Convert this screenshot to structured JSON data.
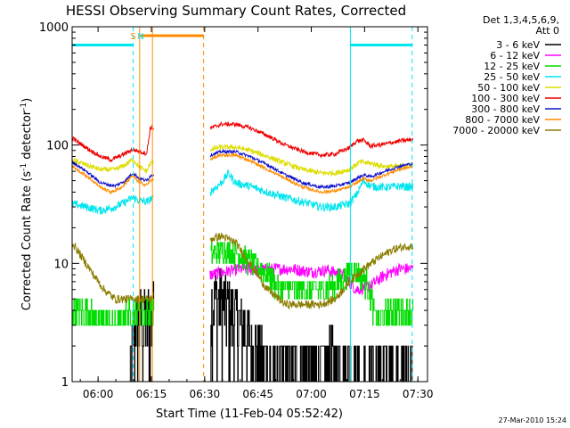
{
  "chart_data": {
    "type": "line",
    "title": "HESSI Observing Summary Count Rates, Corrected",
    "xlabel": "Start Time (11-Feb-04 05:52:42)",
    "ylabel": "Corrected Count Rate (s⁻¹ detector⁻¹)",
    "ylabel_main": "Corrected Count Rate (s",
    "ylabel_sup1": "-1",
    "ylabel_mid": " detector",
    "ylabel_sup2": "-1",
    "ylabel_end": ")",
    "x_units": "minutes since 05:52:42",
    "xlim": [
      0,
      100
    ],
    "ylim": [
      1,
      1000
    ],
    "yscale": "log",
    "x_ticks": [
      {
        "x": 7.3,
        "label": "06:00"
      },
      {
        "x": 22.3,
        "label": "06:15"
      },
      {
        "x": 37.3,
        "label": "06:30"
      },
      {
        "x": 52.3,
        "label": "06:45"
      },
      {
        "x": 67.3,
        "label": "07:00"
      },
      {
        "x": 82.3,
        "label": "07:15"
      },
      {
        "x": 97.3,
        "label": "07:30"
      }
    ],
    "y_ticks": [
      {
        "y": 1,
        "label": "1"
      },
      {
        "y": 10,
        "label": "10"
      },
      {
        "y": 100,
        "label": "100"
      },
      {
        "y": 1000,
        "label": "1000"
      }
    ],
    "legend_header": [
      "Det 1,3,4,5,6,9,",
      "Att 0"
    ],
    "legend_position": "right",
    "annotations": [
      {
        "label": "S",
        "x": 17.2,
        "color": "#ff8c00"
      },
      {
        "label": "N",
        "x": 19.3,
        "color": "#00e5ee"
      }
    ],
    "vlines": [
      {
        "x": 17.2,
        "color": "#00e5ee",
        "style": "dashed"
      },
      {
        "x": 19.0,
        "color": "#ff8c00",
        "style": "solid"
      },
      {
        "x": 22.6,
        "color": "#ff8c00",
        "style": "solid"
      },
      {
        "x": 37.0,
        "color": "#ff8c00",
        "style": "dashed"
      },
      {
        "x": 78.3,
        "color": "#00e5ee",
        "style": "solid"
      },
      {
        "x": 95.7,
        "color": "#00e5ee",
        "style": "dashed"
      }
    ],
    "bars_top": [
      {
        "x0": 0,
        "x1": 17.2,
        "y": 700,
        "color": "#00e5ee"
      },
      {
        "x0": 19.0,
        "x1": 37.0,
        "y": 840,
        "color": "#ff8c00"
      },
      {
        "x0": 78.3,
        "x1": 95.7,
        "y": 700,
        "color": "#00e5ee"
      }
    ],
    "gaps": [
      [
        23.0,
        38.8
      ]
    ],
    "series": [
      {
        "name": "3 - 6 keV",
        "color": "#000000",
        "noise": 0.8,
        "step": true,
        "points": [
          [
            16,
            1
          ],
          [
            17,
            2
          ],
          [
            18,
            3
          ],
          [
            19,
            4
          ],
          [
            20,
            3
          ],
          [
            22,
            4
          ],
          [
            38.8,
            5
          ],
          [
            42,
            5
          ],
          [
            45,
            4
          ],
          [
            48,
            3
          ],
          [
            51,
            2
          ],
          [
            54,
            1.5
          ],
          [
            57,
            1.2
          ],
          [
            60,
            1.5
          ],
          [
            63,
            1.3
          ],
          [
            66,
            1.4
          ],
          [
            69,
            1.3
          ],
          [
            73,
            1.5
          ],
          [
            77,
            1.5
          ],
          [
            80,
            1
          ],
          [
            85,
            1
          ],
          [
            88,
            1.2
          ],
          [
            92,
            1.2
          ],
          [
            96,
            1.3
          ]
        ]
      },
      {
        "name": "6 - 12 keV",
        "color": "#ff00ff",
        "noise": 0.12,
        "points": [
          [
            38.8,
            8
          ],
          [
            43,
            8.5
          ],
          [
            47,
            9
          ],
          [
            52,
            8.8
          ],
          [
            57,
            9
          ],
          [
            62,
            9
          ],
          [
            67,
            8.5
          ],
          [
            72,
            8.8
          ],
          [
            76,
            8
          ],
          [
            80,
            6
          ],
          [
            84,
            6.5
          ],
          [
            88,
            8
          ],
          [
            92,
            9
          ],
          [
            96,
            9
          ]
        ]
      },
      {
        "name": "12 - 25 keV",
        "color": "#00dd00",
        "noise": 0.25,
        "step": true,
        "points": [
          [
            0,
            4
          ],
          [
            4,
            4
          ],
          [
            8,
            3.5
          ],
          [
            12,
            3
          ],
          [
            16,
            4
          ],
          [
            20,
            4
          ],
          [
            22,
            4
          ],
          [
            38.8,
            12
          ],
          [
            43,
            13
          ],
          [
            47,
            12
          ],
          [
            51,
            10
          ],
          [
            55,
            8
          ],
          [
            59,
            6
          ],
          [
            63,
            6
          ],
          [
            67,
            6
          ],
          [
            71,
            6
          ],
          [
            75,
            7
          ],
          [
            79,
            9
          ],
          [
            83,
            7
          ],
          [
            86,
            3
          ],
          [
            89,
            4
          ],
          [
            92,
            4
          ],
          [
            96,
            4
          ]
        ]
      },
      {
        "name": "25 - 50 keV",
        "color": "#00e5ee",
        "noise": 0.08,
        "points": [
          [
            0,
            32
          ],
          [
            4,
            30
          ],
          [
            8,
            28
          ],
          [
            12,
            30
          ],
          [
            15,
            33
          ],
          [
            17,
            36
          ],
          [
            19,
            34
          ],
          [
            21,
            33
          ],
          [
            22,
            35
          ],
          [
            38.8,
            40
          ],
          [
            42,
            48
          ],
          [
            44,
            58
          ],
          [
            46,
            48
          ],
          [
            50,
            45
          ],
          [
            55,
            40
          ],
          [
            60,
            36
          ],
          [
            65,
            33
          ],
          [
            70,
            30
          ],
          [
            74,
            30
          ],
          [
            78,
            32
          ],
          [
            80,
            38
          ],
          [
            82,
            50
          ],
          [
            84,
            45
          ],
          [
            88,
            44
          ],
          [
            92,
            45
          ],
          [
            96,
            44
          ]
        ]
      },
      {
        "name": "50 - 100 keV",
        "color": "#dddd00",
        "noise": 0.05,
        "points": [
          [
            0,
            75
          ],
          [
            4,
            68
          ],
          [
            8,
            62
          ],
          [
            12,
            62
          ],
          [
            15,
            68
          ],
          [
            17,
            76
          ],
          [
            19,
            65
          ],
          [
            21,
            60
          ],
          [
            22,
            70
          ],
          [
            38.8,
            92
          ],
          [
            42,
            96
          ],
          [
            46,
            96
          ],
          [
            50,
            90
          ],
          [
            55,
            80
          ],
          [
            60,
            70
          ],
          [
            65,
            62
          ],
          [
            70,
            58
          ],
          [
            74,
            58
          ],
          [
            78,
            62
          ],
          [
            81,
            72
          ],
          [
            84,
            70
          ],
          [
            88,
            66
          ],
          [
            92,
            66
          ],
          [
            96,
            68
          ]
        ]
      },
      {
        "name": "100 - 300 keV",
        "color": "#ee0000",
        "noise": 0.04,
        "points": [
          [
            0,
            115
          ],
          [
            4,
            95
          ],
          [
            8,
            80
          ],
          [
            11,
            75
          ],
          [
            14,
            82
          ],
          [
            17,
            92
          ],
          [
            19,
            88
          ],
          [
            21,
            85
          ],
          [
            22,
            140
          ],
          [
            38.8,
            138
          ],
          [
            42,
            150
          ],
          [
            46,
            150
          ],
          [
            50,
            140
          ],
          [
            55,
            120
          ],
          [
            60,
            100
          ],
          [
            65,
            88
          ],
          [
            70,
            82
          ],
          [
            74,
            84
          ],
          [
            78,
            95
          ],
          [
            80,
            108
          ],
          [
            82,
            110
          ],
          [
            84,
            98
          ],
          [
            88,
            102
          ],
          [
            92,
            108
          ],
          [
            96,
            112
          ]
        ]
      },
      {
        "name": "300 - 800 keV",
        "color": "#1010cc",
        "noise": 0.03,
        "points": [
          [
            0,
            72
          ],
          [
            4,
            60
          ],
          [
            8,
            48
          ],
          [
            12,
            45
          ],
          [
            15,
            50
          ],
          [
            17,
            58
          ],
          [
            19,
            52
          ],
          [
            21,
            50
          ],
          [
            22,
            55
          ],
          [
            38.8,
            82
          ],
          [
            42,
            88
          ],
          [
            46,
            88
          ],
          [
            50,
            80
          ],
          [
            55,
            68
          ],
          [
            60,
            56
          ],
          [
            65,
            48
          ],
          [
            70,
            44
          ],
          [
            74,
            45
          ],
          [
            78,
            48
          ],
          [
            80,
            52
          ],
          [
            82,
            56
          ],
          [
            84,
            54
          ],
          [
            88,
            60
          ],
          [
            92,
            66
          ],
          [
            96,
            70
          ]
        ]
      },
      {
        "name": "800 - 7000 keV",
        "color": "#ff8c00",
        "noise": 0.03,
        "points": [
          [
            0,
            66
          ],
          [
            4,
            55
          ],
          [
            8,
            44
          ],
          [
            11,
            40
          ],
          [
            14,
            44
          ],
          [
            17,
            55
          ],
          [
            19,
            48
          ],
          [
            21,
            46
          ],
          [
            22,
            50
          ],
          [
            38.8,
            76
          ],
          [
            42,
            82
          ],
          [
            46,
            82
          ],
          [
            50,
            74
          ],
          [
            55,
            62
          ],
          [
            60,
            52
          ],
          [
            65,
            44
          ],
          [
            70,
            40
          ],
          [
            74,
            41
          ],
          [
            78,
            44
          ],
          [
            80,
            48
          ],
          [
            82,
            52
          ],
          [
            84,
            50
          ],
          [
            88,
            56
          ],
          [
            92,
            62
          ],
          [
            96,
            66
          ]
        ]
      },
      {
        "name": "7000 - 20000 keV",
        "color": "#8b7d00",
        "noise": 0.08,
        "points": [
          [
            0,
            15
          ],
          [
            3,
            11
          ],
          [
            6,
            8
          ],
          [
            9,
            6
          ],
          [
            12,
            5
          ],
          [
            15,
            5
          ],
          [
            18,
            5
          ],
          [
            21,
            5
          ],
          [
            22,
            5
          ],
          [
            38.8,
            16
          ],
          [
            42,
            17
          ],
          [
            46,
            15
          ],
          [
            50,
            10
          ],
          [
            55,
            6
          ],
          [
            60,
            4.5
          ],
          [
            65,
            4.5
          ],
          [
            70,
            4.5
          ],
          [
            74,
            5
          ],
          [
            78,
            7
          ],
          [
            82,
            9
          ],
          [
            86,
            11
          ],
          [
            90,
            13
          ],
          [
            94,
            14
          ],
          [
            96,
            14
          ]
        ]
      }
    ]
  },
  "footer": {
    "timestamp": "27-Mar-2010 15:24"
  }
}
